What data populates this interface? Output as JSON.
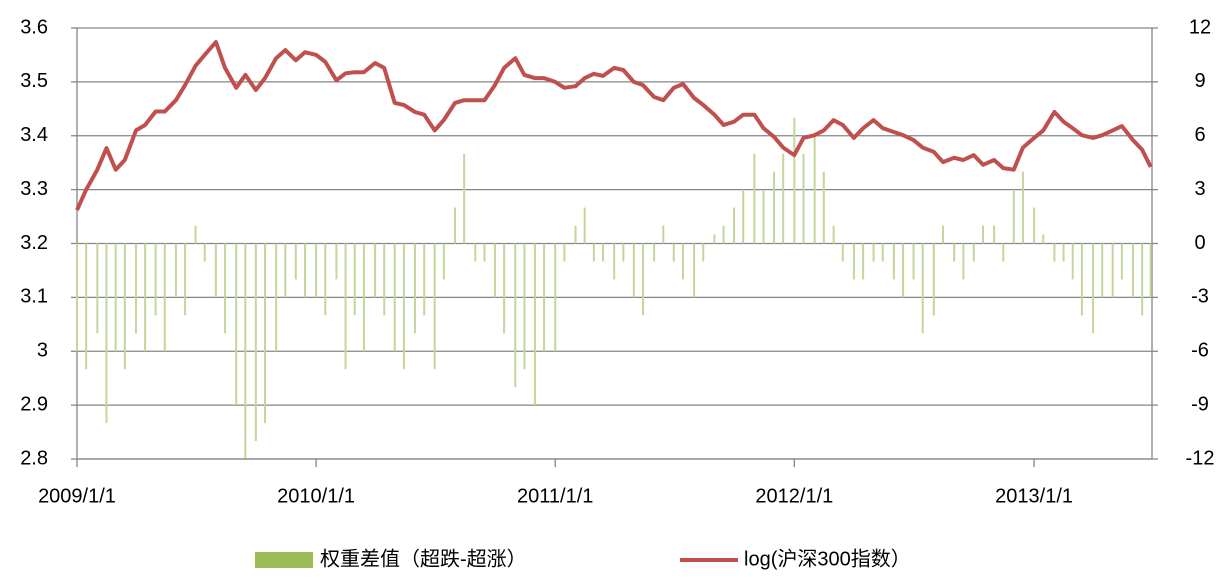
{
  "chart_data": {
    "type": "bar-line",
    "x": [
      "2009-01-01",
      "2009-01-15",
      "2009-02-01",
      "2009-02-15",
      "2009-03-01",
      "2009-03-15",
      "2009-04-01",
      "2009-04-15",
      "2009-05-01",
      "2009-05-15",
      "2009-06-01",
      "2009-06-15",
      "2009-07-01",
      "2009-07-15",
      "2009-08-01",
      "2009-08-15",
      "2009-09-01",
      "2009-09-15",
      "2009-10-01",
      "2009-10-15",
      "2009-11-01",
      "2009-11-15",
      "2009-12-01",
      "2009-12-15",
      "2010-01-01",
      "2010-01-15",
      "2010-02-01",
      "2010-02-15",
      "2010-03-01",
      "2010-03-15",
      "2010-04-01",
      "2010-04-15",
      "2010-05-01",
      "2010-05-15",
      "2010-06-01",
      "2010-06-15",
      "2010-07-01",
      "2010-07-15",
      "2010-08-01",
      "2010-08-15",
      "2010-09-01",
      "2010-09-15",
      "2010-10-01",
      "2010-10-15",
      "2010-11-01",
      "2010-11-15",
      "2010-12-01",
      "2010-12-15",
      "2011-01-01",
      "2011-01-15",
      "2011-02-01",
      "2011-02-15",
      "2011-03-01",
      "2011-03-15",
      "2011-04-01",
      "2011-04-15",
      "2011-05-01",
      "2011-05-15",
      "2011-06-01",
      "2011-06-15",
      "2011-07-01",
      "2011-07-15",
      "2011-08-01",
      "2011-08-15",
      "2011-09-01",
      "2011-09-15",
      "2011-10-01",
      "2011-10-15",
      "2011-11-01",
      "2011-11-15",
      "2011-12-01",
      "2011-12-15",
      "2012-01-01",
      "2012-01-15",
      "2012-02-01",
      "2012-02-15",
      "2012-03-01",
      "2012-03-15",
      "2012-04-01",
      "2012-04-15",
      "2012-05-01",
      "2012-05-15",
      "2012-06-01",
      "2012-06-15",
      "2012-07-01",
      "2012-07-15",
      "2012-08-01",
      "2012-08-15",
      "2012-09-01",
      "2012-09-15",
      "2012-10-01",
      "2012-10-15",
      "2012-11-01",
      "2012-11-15",
      "2012-12-01",
      "2012-12-15",
      "2013-01-01",
      "2013-01-15",
      "2013-02-01",
      "2013-02-15",
      "2013-03-01",
      "2013-03-15",
      "2013-04-01",
      "2013-04-15",
      "2013-05-01",
      "2013-05-15",
      "2013-06-01",
      "2013-06-15",
      "2013-06-28"
    ],
    "series": [
      {
        "name": "权重差值（超跌-超涨）",
        "type": "bar",
        "axis": "y2",
        "color": "#c3d69b",
        "legend_color": "#9bbb59",
        "values": [
          -6,
          -7,
          -5,
          -10,
          -6,
          -7,
          -5,
          -6,
          -4,
          -6,
          -3,
          -4,
          1,
          -1,
          -3,
          -5,
          -9,
          -12,
          -11,
          -10,
          -6,
          -3,
          -2,
          -3,
          -3,
          -4,
          -2,
          -7,
          -4,
          -6,
          -3,
          -4,
          -6,
          -7,
          -5,
          -4,
          -7,
          -2,
          2,
          5,
          -1,
          -1,
          -3,
          -5,
          -8,
          -7,
          -9,
          -6,
          -6,
          -1,
          1,
          2,
          -1,
          -1,
          -2,
          -1,
          -3,
          -4,
          -1,
          1,
          -1,
          -2,
          -3,
          -1,
          0.5,
          1,
          2,
          3,
          5,
          3,
          4,
          5,
          7,
          5,
          6,
          4,
          1,
          -1,
          -2,
          -2,
          -1,
          -1,
          -2,
          -3,
          -2,
          -5,
          -4,
          1,
          -1,
          -2,
          -1,
          1,
          1,
          -1,
          3,
          4,
          2,
          0.5,
          -1,
          -1,
          -2,
          -4,
          -5,
          -3,
          -3,
          -2,
          -3,
          -4,
          -3
        ]
      },
      {
        "name": "log(沪深300指数）",
        "type": "line",
        "axis": "y",
        "color": "#c0504d",
        "values": [
          3.262,
          3.3,
          3.337,
          3.377,
          3.337,
          3.355,
          3.41,
          3.42,
          3.445,
          3.445,
          3.466,
          3.494,
          3.53,
          3.55,
          3.574,
          3.526,
          3.489,
          3.513,
          3.485,
          3.507,
          3.544,
          3.559,
          3.54,
          3.555,
          3.55,
          3.537,
          3.503,
          3.516,
          3.518,
          3.518,
          3.535,
          3.526,
          3.461,
          3.457,
          3.444,
          3.439,
          3.41,
          3.429,
          3.461,
          3.466,
          3.466,
          3.466,
          3.494,
          3.526,
          3.544,
          3.513,
          3.507,
          3.507,
          3.5,
          3.489,
          3.492,
          3.507,
          3.515,
          3.511,
          3.526,
          3.522,
          3.5,
          3.494,
          3.472,
          3.466,
          3.489,
          3.496,
          3.47,
          3.457,
          3.439,
          3.42,
          3.426,
          3.439,
          3.439,
          3.414,
          3.398,
          3.378,
          3.364,
          3.396,
          3.401,
          3.41,
          3.429,
          3.42,
          3.396,
          3.414,
          3.429,
          3.414,
          3.407,
          3.401,
          3.392,
          3.378,
          3.37,
          3.351,
          3.359,
          3.355,
          3.364,
          3.346,
          3.355,
          3.34,
          3.337,
          3.378,
          3.396,
          3.41,
          3.444,
          3.426,
          3.414,
          3.401,
          3.396,
          3.401,
          3.41,
          3.418,
          3.392,
          3.374,
          3.342
        ]
      }
    ],
    "xlim": [
      "2009-01-01",
      "2013-06-30"
    ],
    "xticks": [
      {
        "value": "2009-01-01",
        "label": "2009/1/1"
      },
      {
        "value": "2010-01-01",
        "label": "2010/1/1"
      },
      {
        "value": "2011-01-01",
        "label": "2011/1/1"
      },
      {
        "value": "2012-01-01",
        "label": "2012/1/1"
      },
      {
        "value": "2013-01-01",
        "label": "2013/1/1"
      }
    ],
    "ylim": [
      2.8,
      3.6
    ],
    "yticks": [
      {
        "value": 2.8,
        "label": "2.8"
      },
      {
        "value": 2.9,
        "label": "2.9"
      },
      3,
      3.1,
      3.2,
      3.3,
      3.4,
      3.5,
      3.6
    ],
    "y2lim": [
      -12,
      12
    ],
    "y2ticks": [
      -12,
      -9,
      -6,
      -3,
      0,
      3,
      6,
      9,
      12
    ],
    "grid": true,
    "legend": "bottom"
  }
}
